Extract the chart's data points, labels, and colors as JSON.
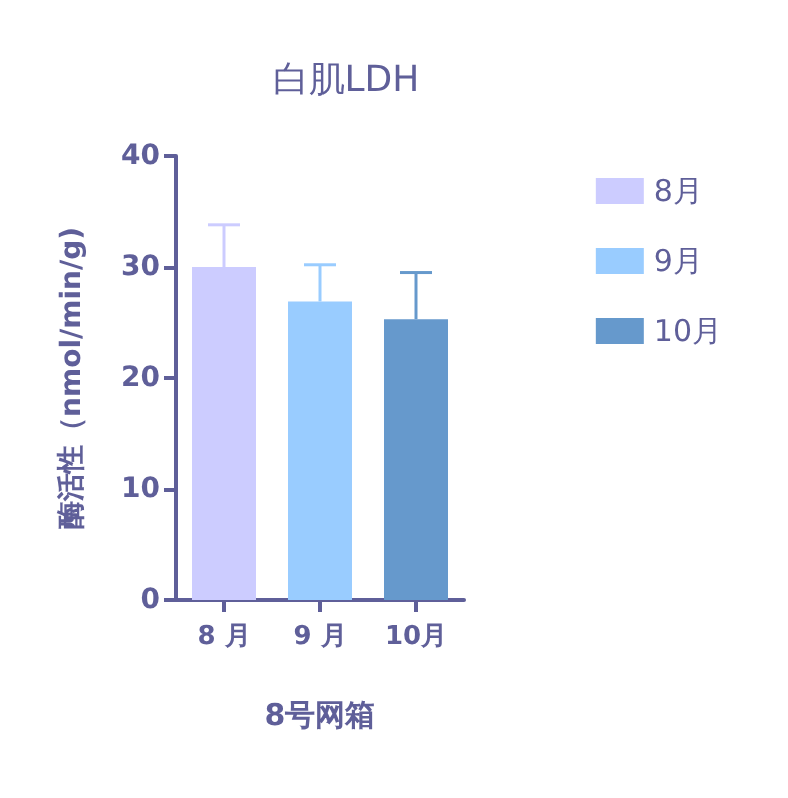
{
  "chart_data": {
    "type": "bar",
    "title": "白肌LDH",
    "xlabel": "8号网箱",
    "ylabel": "酶活性（nmol/min/g)",
    "categories": [
      "8 月",
      "9 月",
      "10月"
    ],
    "series": [
      {
        "name": "8月",
        "color": "#ccccff",
        "values": [
          30.0,
          null,
          null
        ],
        "errors": [
          [
            30.0,
            33.8
          ],
          null,
          null
        ]
      },
      {
        "name": "9月",
        "color": "#99ccff",
        "values": [
          null,
          26.9,
          null
        ],
        "errors": [
          null,
          [
            26.9,
            30.2
          ],
          null
        ]
      },
      {
        "name": "10月",
        "color": "#6699cc",
        "values": [
          null,
          null,
          25.3
        ],
        "errors": [
          null,
          null,
          [
            25.3,
            29.5
          ]
        ]
      }
    ],
    "ylim": [
      0,
      40
    ],
    "yticks": [
      0,
      10,
      20,
      30,
      40
    ],
    "grid": false,
    "legend": "right"
  }
}
